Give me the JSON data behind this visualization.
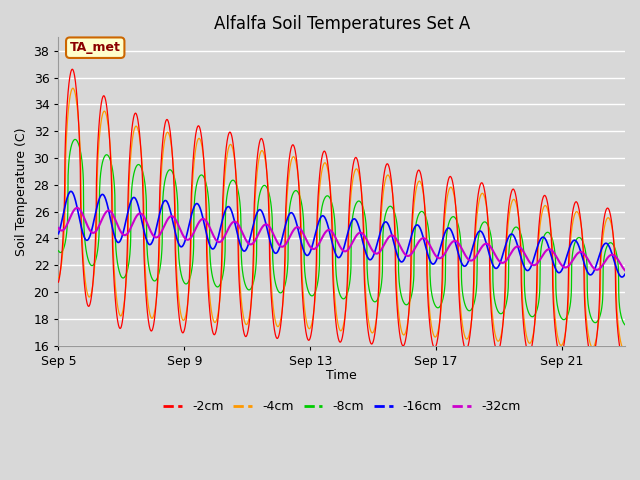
{
  "title": "Alfalfa Soil Temperatures Set A",
  "xlabel": "Time",
  "ylabel": "Soil Temperature (C)",
  "ylim": [
    16,
    39
  ],
  "yticks": [
    16,
    18,
    20,
    22,
    24,
    26,
    28,
    30,
    32,
    34,
    36,
    38
  ],
  "xtick_labels": [
    "Sep 5",
    "Sep 9",
    "Sep 13",
    "Sep 17",
    "Sep 21"
  ],
  "xtick_positions": [
    0,
    4,
    8,
    12,
    16
  ],
  "xlim": [
    0,
    18
  ],
  "legend_labels": [
    "-2cm",
    "-4cm",
    "-8cm",
    "-16cm",
    "-32cm"
  ],
  "legend_colors": [
    "#ff0000",
    "#ff9900",
    "#00cc00",
    "#0000ff",
    "#cc00cc"
  ],
  "annotation_text": "TA_met",
  "annotation_bg": "#ffffcc",
  "annotation_border": "#cc6600",
  "fig_bg": "#d8d8d8",
  "plot_bg": "#d8d8d8",
  "grid_color": "#ffffff",
  "title_fontsize": 12,
  "axis_fontsize": 9,
  "tick_fontsize": 9,
  "n_days": 18,
  "n_points": 2000
}
